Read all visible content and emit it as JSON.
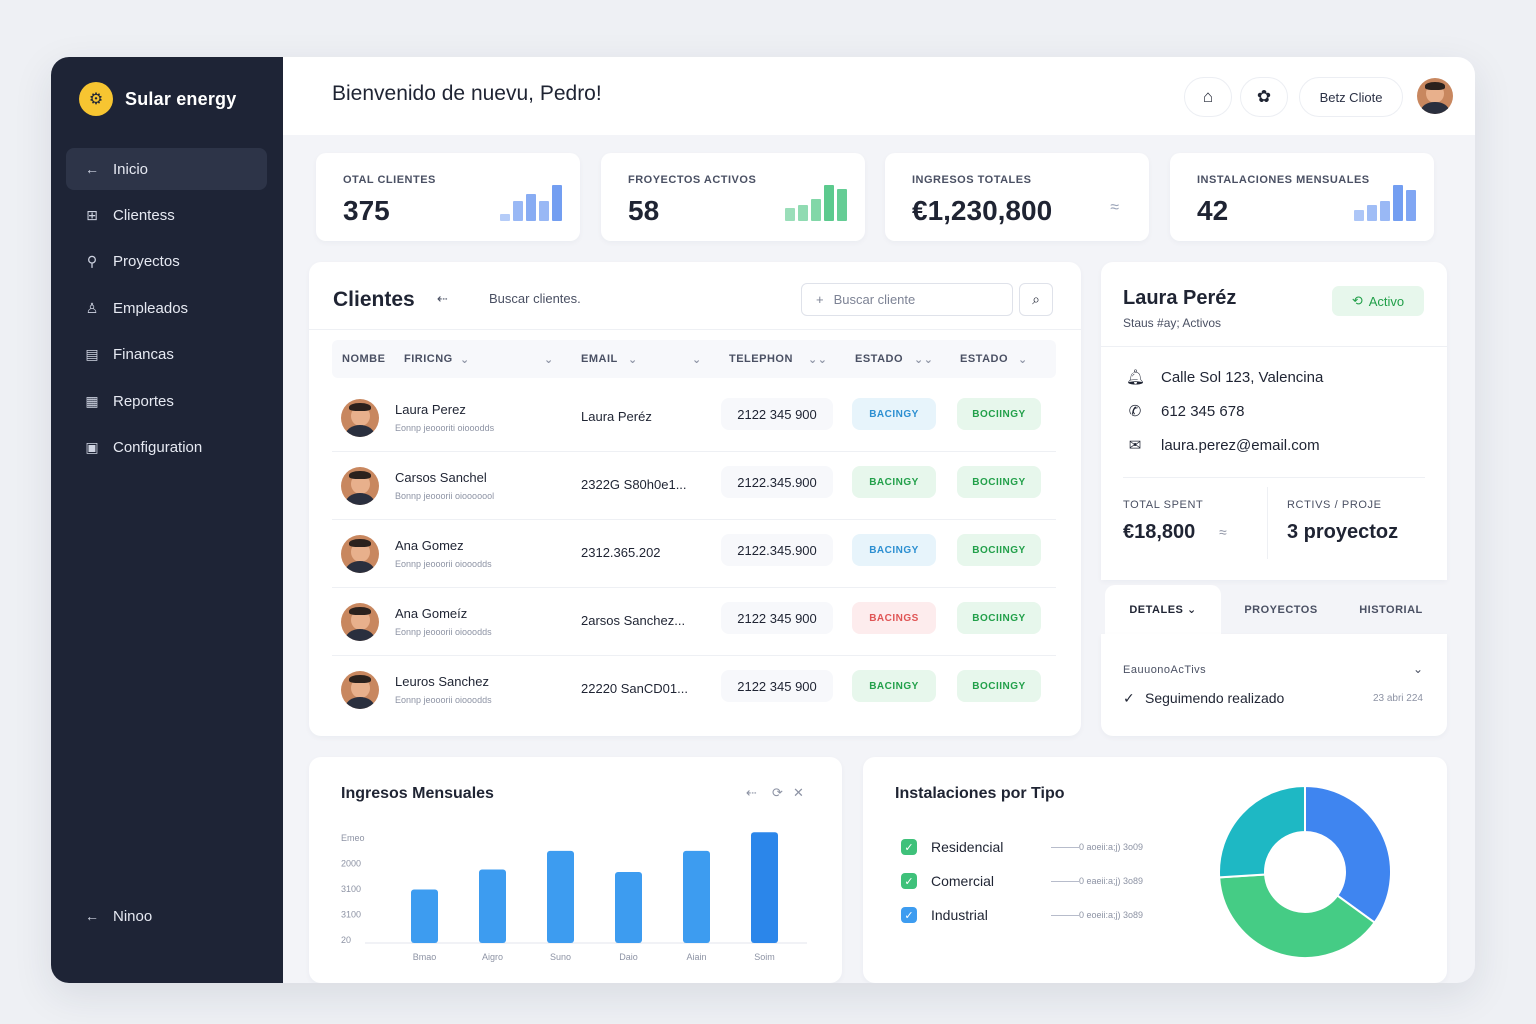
{
  "brand": {
    "logo_glyph": "⚙",
    "name": "Sular energy"
  },
  "nav": {
    "items": [
      {
        "label": "Inicio",
        "icon": "arrow-left-icon",
        "glyph": "←"
      },
      {
        "label": "Clientess",
        "icon": "clients-icon",
        "glyph": "⊞"
      },
      {
        "label": "Proyectos",
        "icon": "pin-icon",
        "glyph": "⚲"
      },
      {
        "label": "Empleados",
        "icon": "employees-icon",
        "glyph": "♙"
      },
      {
        "label": "Financas",
        "icon": "finance-icon",
        "glyph": "▤"
      },
      {
        "label": "Reportes",
        "icon": "reports-icon",
        "glyph": "▦"
      },
      {
        "label": "Configuration",
        "icon": "settings-icon",
        "glyph": "▣"
      }
    ],
    "bottom_label": "Ninoo",
    "bottom_glyph": "←"
  },
  "header": {
    "welcome": "Bienvenido de nuevu, Pedro!",
    "btn_glyph_1": "⌂",
    "btn_glyph_2": "✿",
    "client_button": "Betz Cliote"
  },
  "stats": [
    {
      "label": "OTAL CLIENTES",
      "value": "375",
      "color": "#5b8def",
      "bars": [
        0.2,
        0.55,
        0.75,
        0.55,
        1.0
      ]
    },
    {
      "label": "FROYECTOS ACTIVOS",
      "value": "58",
      "color": "#3fc17a",
      "bars": [
        0.35,
        0.45,
        0.6,
        1.0,
        0.9
      ]
    },
    {
      "label": "INGRESOS TOTALES",
      "value": "€1,230,800",
      "color": "#9aa3b8",
      "bars": []
    },
    {
      "label": "INSTALACIONES MENSUALES",
      "value": "42",
      "color": "#5b8def",
      "bars": [
        0.3,
        0.45,
        0.55,
        1.0,
        0.85
      ]
    }
  ],
  "clients": {
    "title": "Clientes",
    "subtitle": "Buscar clientes.",
    "search_placeholder": "Buscar cliente",
    "columns": [
      "NOMBE",
      "FIRICNG",
      "EMAIL",
      "TELEPHON",
      "ESTADO",
      "ESTADO"
    ],
    "rows": [
      {
        "name": "Laura Perez",
        "sub": "Eonnp jeoooriti oiooodds",
        "email": "Laura Peréz",
        "phone": "2122 345 900",
        "status1": "BACINGY",
        "status1_color": "blue",
        "status2": "BOCIINGY"
      },
      {
        "name": "Carsos Sanchel",
        "sub": "Bonnp jeooorii oiooooool",
        "email": "2322G S80h0e1...",
        "phone": "2122.345.900",
        "status1": "BACINGY",
        "status1_color": "green",
        "status2": "BOCIINGY"
      },
      {
        "name": "Ana Gomez",
        "sub": "Eonnp jeooorii oiooodds",
        "email": "2312.365.202",
        "phone": "2122.345.900",
        "status1": "BACINGY",
        "status1_color": "blue",
        "status2": "BOCIINGY"
      },
      {
        "name": "Ana Gomeíz",
        "sub": "Eonnp jeooorii oiooodds",
        "email": "2arsos Sanchez...",
        "phone": "2122 345 900",
        "status1": "BACINGS",
        "status1_color": "red",
        "status2": "BOCIINGY"
      },
      {
        "name": "Leuros Sanchez",
        "sub": "Eonnp jeooorii oiooodds",
        "email": "22220 SanCD01...",
        "phone": "2122 345 900",
        "status1": "BACINGY",
        "status1_color": "green",
        "status2": "BOCIINGY"
      }
    ]
  },
  "detail": {
    "name": "Laura Peréz",
    "status_line": "Staus #ay; Activos",
    "badge": "Activo",
    "address": "Calle Sol 123, Valencina",
    "phone": "612 345 678",
    "email": "laura.perez@email.com",
    "spent_label": "TOTAL SPENT",
    "spent_value": "€18,800",
    "projects_label": "RCTIVS / PROJE",
    "projects_value": "3 proyectoz",
    "tabs": [
      "DETALES",
      "PROYECTOS",
      "HISTORIAL"
    ],
    "section_title": "EauuonoAcTivs",
    "followup": "Seguimendo realizado",
    "followup_date": "23 abri 224"
  },
  "income_chart": {
    "title": "Ingresos Mensuales",
    "tool_glyphs": [
      "⇠",
      "⟳",
      "✕"
    ]
  },
  "install_chart": {
    "title": "Instalaciones por Tipo",
    "legend": [
      {
        "label": "Residencial",
        "note": "0 aoeii:a;j) 3o09",
        "color": "#3fc17a"
      },
      {
        "label": "Comercial",
        "note": "0 eaeii:a;j) 3o89",
        "color": "#3fc17a"
      },
      {
        "label": "Industrial",
        "note": "0 eoeii:a;j) 3o89",
        "color": "#3d9cf0"
      }
    ]
  },
  "chart_data": [
    {
      "type": "bar",
      "title": "Ingresos Mensuales",
      "categories": [
        "Bmao",
        "Aigro",
        "Suno",
        "Daio",
        "Aiain",
        "Soim"
      ],
      "values": [
        2150,
        2950,
        3700,
        2850,
        3700,
        4450
      ],
      "ytick_labels": [
        "Emeo",
        "2000",
        "3100",
        "3100",
        "20"
      ],
      "ylim": [
        0,
        4900
      ],
      "color": "#3d9cf0",
      "grid": false
    },
    {
      "type": "pie",
      "title": "Instalaciones por Tipo",
      "labels": [
        "Residencial",
        "Comercial",
        "Industrial"
      ],
      "values": [
        35,
        39,
        26
      ],
      "colors": [
        "#3f85f0",
        "#45cc85",
        "#1eb8c4"
      ],
      "donut": true
    }
  ]
}
